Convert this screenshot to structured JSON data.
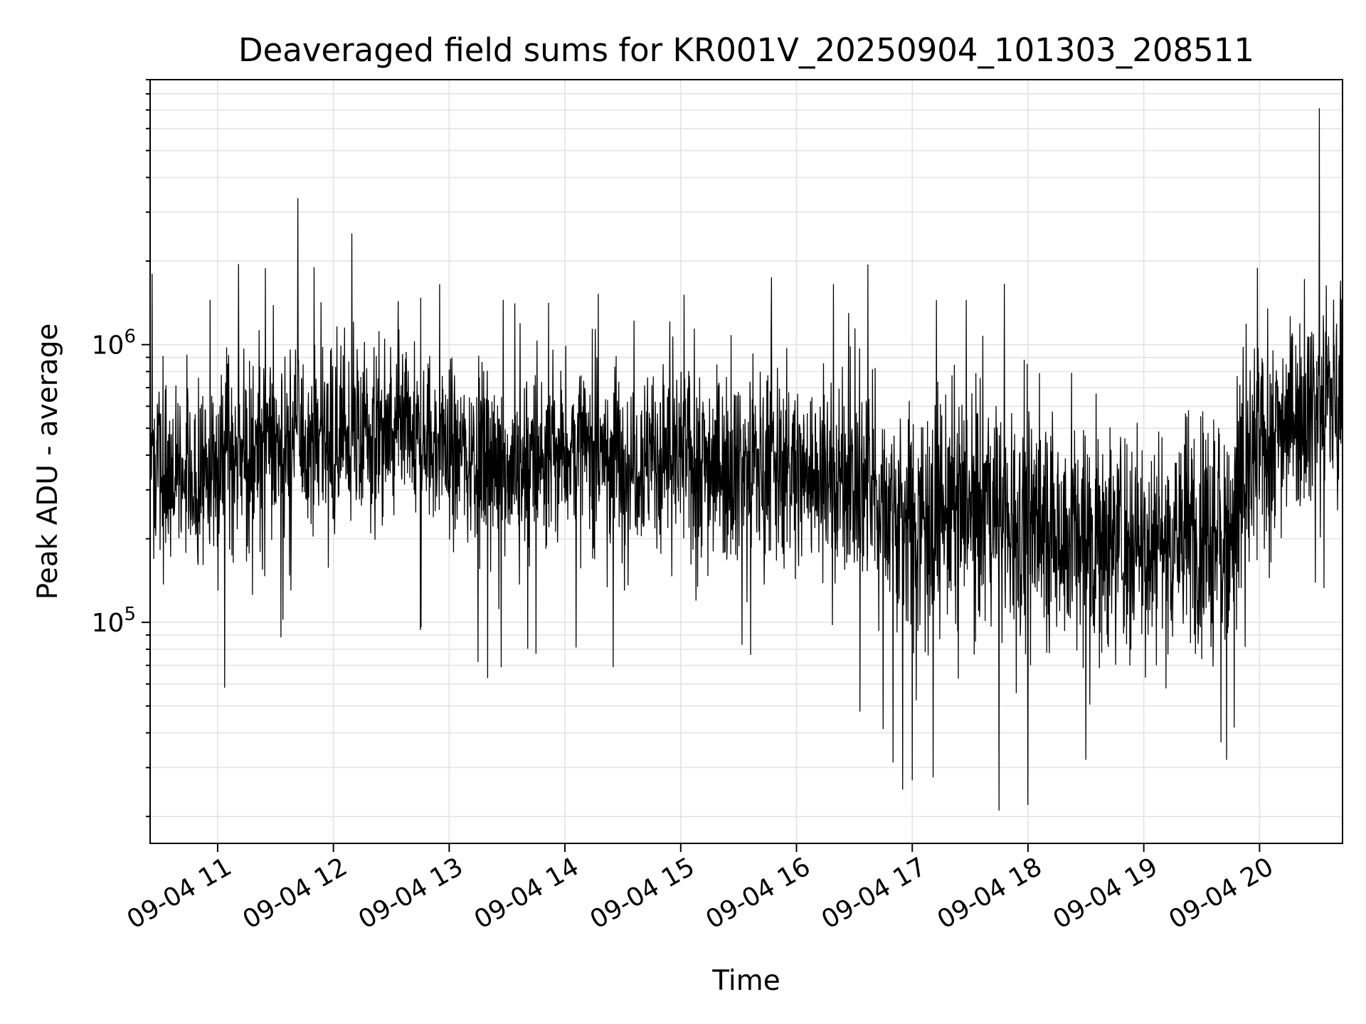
{
  "chart_data": {
    "type": "line",
    "title": "Deaveraged field sums for KR001V_20250904_101303_208511",
    "xlabel": "Time",
    "ylabel": "Peak ADU - average",
    "yscale": "log",
    "grid": true,
    "color": "#000000",
    "x_start": "09-04 10:25",
    "x_end": "09-04 20:43",
    "xlim": [
      "09-04 10:25",
      "09-04 20:43"
    ],
    "ylim": [
      16000,
      9000000
    ],
    "xticks": [
      "09-04 11",
      "09-04 12",
      "09-04 13",
      "09-04 14",
      "09-04 15",
      "09-04 16",
      "09-04 17",
      "09-04 18",
      "09-04 19",
      "09-04 20"
    ],
    "xtick_hours": [
      11,
      12,
      13,
      14,
      15,
      16,
      17,
      18,
      19,
      20
    ],
    "yticks": [
      {
        "value": 100000,
        "base": "10",
        "exp": "5"
      },
      {
        "value": 1000000,
        "base": "10",
        "exp": "6"
      }
    ],
    "trend": [
      {
        "t": "10:25",
        "v": 450000
      },
      {
        "t": "10:40",
        "v": 320000
      },
      {
        "t": "11:00",
        "v": 360000
      },
      {
        "t": "11:30",
        "v": 450000
      },
      {
        "t": "12:00",
        "v": 470000
      },
      {
        "t": "12:30",
        "v": 460000
      },
      {
        "t": "13:00",
        "v": 430000
      },
      {
        "t": "13:30",
        "v": 360000
      },
      {
        "t": "14:00",
        "v": 420000
      },
      {
        "t": "14:30",
        "v": 400000
      },
      {
        "t": "15:00",
        "v": 390000
      },
      {
        "t": "15:30",
        "v": 370000
      },
      {
        "t": "16:00",
        "v": 350000
      },
      {
        "t": "16:30",
        "v": 320000
      },
      {
        "t": "17:00",
        "v": 240000
      },
      {
        "t": "17:30",
        "v": 260000
      },
      {
        "t": "18:00",
        "v": 230000
      },
      {
        "t": "18:30",
        "v": 210000
      },
      {
        "t": "19:00",
        "v": 200000
      },
      {
        "t": "19:30",
        "v": 210000
      },
      {
        "t": "19:45",
        "v": 230000
      },
      {
        "t": "20:00",
        "v": 420000
      },
      {
        "t": "20:15",
        "v": 560000
      },
      {
        "t": "20:43",
        "v": 680000
      }
    ],
    "peaks": [
      {
        "t": "10:26",
        "v": 1800000
      },
      {
        "t": "11:50",
        "v": 1900000
      },
      {
        "t": "12:55",
        "v": 1650000
      },
      {
        "t": "13:28",
        "v": 1450000
      },
      {
        "t": "15:47",
        "v": 1750000
      },
      {
        "t": "16:27",
        "v": 1300000
      },
      {
        "t": "20:31",
        "v": 7100000
      },
      {
        "t": "20:42",
        "v": 1700000
      }
    ],
    "dips": [
      {
        "t": "13:20",
        "v": 63000
      },
      {
        "t": "13:45",
        "v": 77000
      },
      {
        "t": "14:25",
        "v": 69000
      },
      {
        "t": "16:55",
        "v": 25000
      },
      {
        "t": "17:00",
        "v": 27000
      },
      {
        "t": "17:45",
        "v": 21000
      },
      {
        "t": "18:00",
        "v": 22000
      },
      {
        "t": "18:30",
        "v": 32000
      },
      {
        "t": "19:40",
        "v": 37000
      },
      {
        "t": "19:43",
        "v": 32000
      }
    ]
  }
}
